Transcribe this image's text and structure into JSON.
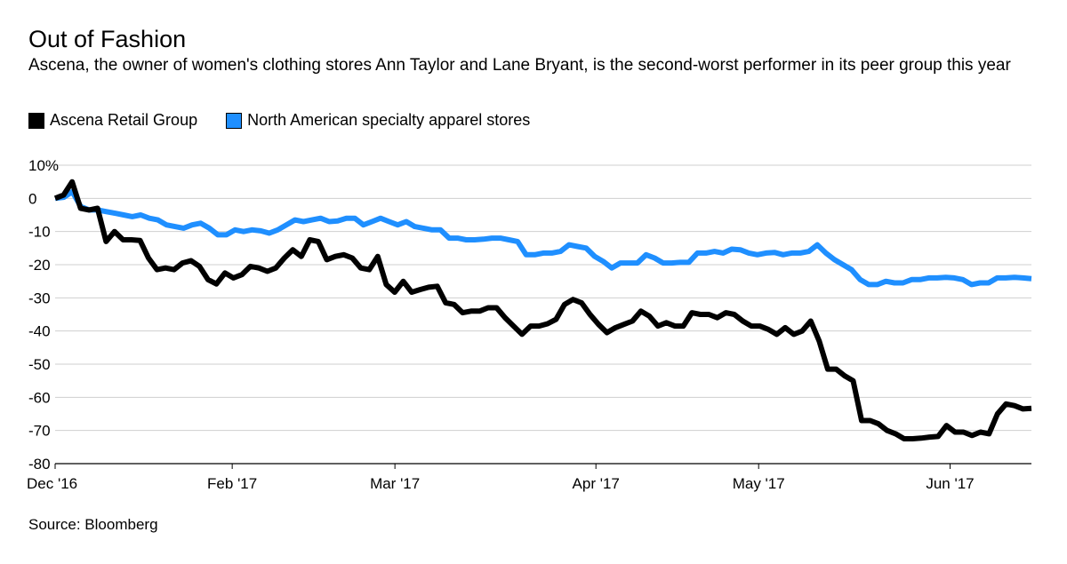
{
  "title": "Out of Fashion",
  "subtitle": "Ascena, the owner of women's clothing stores Ann Taylor and Lane Bryant, is the second-worst performer in its peer group this year",
  "source": "Source: Bloomberg",
  "chart_data": {
    "type": "line",
    "title": "Out of Fashion",
    "xlabel": "",
    "ylabel": "",
    "ylim": [
      -80,
      10
    ],
    "yticks": [
      10,
      0,
      -10,
      -20,
      -30,
      -40,
      -50,
      -60,
      -70,
      -80
    ],
    "ytick_labels": [
      "10%",
      "0",
      "-10",
      "-20",
      "-30",
      "-40",
      "-50",
      "-60",
      "-70",
      "-80"
    ],
    "xlim": [
      0,
      102
    ],
    "xticks": [
      {
        "x": 0,
        "label": "Dec '16"
      },
      {
        "x": 18.5,
        "label": "Feb '17"
      },
      {
        "x": 35.5,
        "label": "Mar '17"
      },
      {
        "x": 56.5,
        "label": "Apr '17"
      },
      {
        "x": 73.5,
        "label": "May '17"
      },
      {
        "x": 93.5,
        "label": "Jun '17"
      }
    ],
    "grid": true,
    "legend_position": "top-left",
    "series": [
      {
        "name": "Ascena Retail Group",
        "color": "#000000",
        "values": [
          0,
          1,
          5,
          -3,
          -3.5,
          -3,
          -13,
          -10,
          -12.5,
          -12.5,
          -12.7,
          -18,
          -21.5,
          -21,
          -21.5,
          -19.5,
          -18.8,
          -20.5,
          -24.5,
          -25.8,
          -22.5,
          -24,
          -23,
          -20.5,
          -21,
          -22,
          -21,
          -18,
          -15.5,
          -17.5,
          -12.5,
          -13,
          -18.5,
          -17.5,
          -17,
          -18,
          -21,
          -21.5,
          -17.5,
          -26,
          -28.3,
          -25,
          -28.3,
          -27.5,
          -26.8,
          -26.5,
          -31.5,
          -32,
          -34.5,
          -34,
          -34,
          -33,
          -33,
          -36,
          -38.5,
          -41,
          -38.5,
          -38.5,
          -37.8,
          -36.5,
          -32,
          -30.5,
          -31.5,
          -35,
          -38,
          -40.5,
          -39,
          -38,
          -37,
          -34,
          -35.5,
          -38.5,
          -37.5,
          -38.5,
          -38.5,
          -34.5,
          -35,
          -35,
          -36,
          -34.5,
          -35,
          -37,
          -38.5,
          -38.5,
          -39.5,
          -41,
          -39,
          -41,
          -40,
          -37,
          -43,
          -51.5,
          -51.5,
          -53.5,
          -55,
          -67,
          -67,
          -68,
          -70,
          -71,
          -72.5,
          -72.5,
          -72.3,
          -72,
          -71.8,
          -68.5,
          -70.5,
          -70.5,
          -71.5,
          -70.5,
          -71,
          -65,
          -62,
          -62.5,
          -63.5,
          -63.3
        ]
      },
      {
        "name": "North American specialty apparel stores",
        "color": "#1f8fff",
        "values": [
          0,
          0.3,
          2,
          -2.5,
          -3.5,
          -3.5,
          -4,
          -4.5,
          -5,
          -5.5,
          -5,
          -6,
          -6.5,
          -8,
          -8.5,
          -9,
          -8,
          -7.5,
          -9,
          -11,
          -11,
          -9.5,
          -10,
          -9.5,
          -9.8,
          -10.5,
          -9.5,
          -8,
          -6.5,
          -7,
          -6.5,
          -6,
          -7,
          -6.8,
          -6,
          -6,
          -8,
          -7,
          -6,
          -7,
          -8,
          -7,
          -8.5,
          -9,
          -9.5,
          -9.5,
          -12,
          -12,
          -12.5,
          -12.5,
          -12.3,
          -12,
          -12,
          -12.5,
          -13,
          -17,
          -17,
          -16.5,
          -16.5,
          -16,
          -14,
          -14.5,
          -15,
          -17.5,
          -19,
          -21,
          -19.5,
          -19.5,
          -19.5,
          -17,
          -18,
          -19.5,
          -19.5,
          -19.3,
          -19.3,
          -16.5,
          -16.5,
          -16,
          -16.5,
          -15.3,
          -15.5,
          -16.5,
          -17,
          -16.5,
          -16.3,
          -17,
          -16.5,
          -16.5,
          -16,
          -14,
          -16.5,
          -18.5,
          -20,
          -21.5,
          -24.5,
          -26,
          -26,
          -25,
          -25.5,
          -25.5,
          -24.5,
          -24.5,
          -24,
          -24,
          -23.8,
          -24,
          -24.5,
          -26,
          -25.5,
          -25.5,
          -24,
          -24,
          -23.8,
          -24,
          -24.2
        ]
      }
    ]
  }
}
